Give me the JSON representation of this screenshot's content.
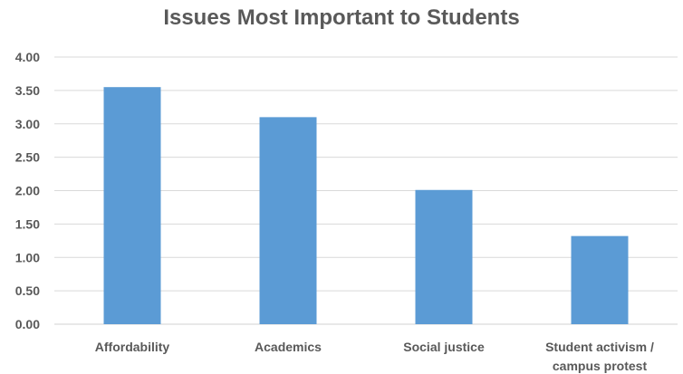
{
  "chart_data": {
    "type": "bar",
    "title": "Issues Most Important to Students",
    "xlabel": "",
    "ylabel": "",
    "categories": [
      [
        "Affordability"
      ],
      [
        "Academics"
      ],
      [
        "Social justice"
      ],
      [
        "Student activism /",
        "campus protest"
      ]
    ],
    "values": [
      3.55,
      3.1,
      2.01,
      1.32
    ],
    "ylim": [
      0,
      4
    ],
    "yticks": [
      "0.00",
      "0.50",
      "1.00",
      "1.50",
      "2.00",
      "2.50",
      "3.00",
      "3.50",
      "4.00"
    ],
    "ytick_values": [
      0,
      0.5,
      1,
      1.5,
      2,
      2.5,
      3,
      3.5,
      4
    ],
    "grid": true,
    "legend": "none",
    "bar_color": "#5B9BD5",
    "grid_color": "#D9D9D9",
    "text_color": "#595959"
  }
}
